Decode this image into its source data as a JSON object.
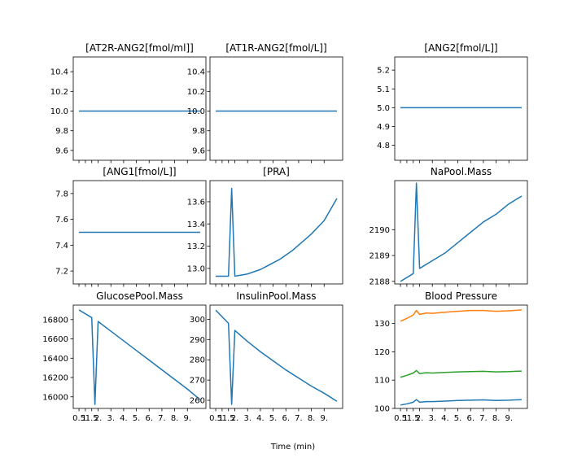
{
  "figure": {
    "xlabel": "Time (min)"
  },
  "colors": {
    "c0": "#1f77b4",
    "c1": "#ff7f0e",
    "c2": "#2ca02c"
  },
  "x_ticks": [
    0.5,
    1,
    1.5,
    2,
    3,
    4,
    5,
    6,
    7,
    8,
    9
  ],
  "x_tick_labels": [
    "0.5",
    "1.",
    "1.5",
    "2.",
    "3.",
    "4.",
    "5.",
    "6.",
    "7.",
    "8.",
    "9."
  ],
  "chart_data": [
    {
      "type": "line",
      "title": "[AT2R-ANG2[fmol/ml]]",
      "xlim": [
        0.05,
        10.45
      ],
      "ylim": [
        9.5,
        10.55
      ],
      "yticks": [
        9.6,
        9.8,
        10.0,
        10.2,
        10.4
      ],
      "ytick_labels": [
        "9.6",
        "9.8",
        "10.0",
        "10.2",
        "10.4"
      ],
      "series": [
        {
          "x": [
            0.5,
            10
          ],
          "y": [
            10.0,
            10.0
          ]
        }
      ]
    },
    {
      "type": "line",
      "title": "[AT1R-ANG2[fmol/L]]",
      "xlim": [
        0.05,
        10.45
      ],
      "ylim": [
        9.5,
        10.55
      ],
      "yticks": [
        9.6,
        9.8,
        10.0,
        10.2,
        10.4
      ],
      "ytick_labels": [
        "9.6",
        "9.8",
        "10.0",
        "10.2",
        "10.4"
      ],
      "series": [
        {
          "x": [
            0.5,
            10
          ],
          "y": [
            10.0,
            10.0
          ]
        }
      ]
    },
    {
      "type": "line",
      "title": "[ANG2[fmol/L]]",
      "xlim": [
        0.05,
        10.45
      ],
      "ylim": [
        4.72,
        5.27
      ],
      "yticks": [
        4.8,
        4.9,
        5.0,
        5.1,
        5.2
      ],
      "ytick_labels": [
        "4.8",
        "4.9",
        "5.0",
        "5.1",
        "5.2"
      ],
      "series": [
        {
          "x": [
            0.5,
            10
          ],
          "y": [
            5.0,
            5.0
          ]
        }
      ]
    },
    {
      "type": "line",
      "title": "[ANG1[fmol/L]]",
      "xlim": [
        0.05,
        10.45
      ],
      "ylim": [
        7.1,
        7.9
      ],
      "yticks": [
        7.2,
        7.4,
        7.6,
        7.8
      ],
      "ytick_labels": [
        "7.2",
        "7.4",
        "7.6",
        "7.8"
      ],
      "series": [
        {
          "x": [
            0.5,
            10
          ],
          "y": [
            7.5,
            7.5
          ]
        }
      ]
    },
    {
      "type": "line",
      "title": "[PRA]",
      "xlim": [
        0.05,
        10.45
      ],
      "ylim": [
        12.86,
        13.79
      ],
      "yticks": [
        13.0,
        13.2,
        13.4,
        13.6
      ],
      "ytick_labels": [
        "13.0",
        "13.2",
        "13.4",
        "13.6"
      ],
      "series": [
        {
          "x": [
            0.5,
            1.5,
            1.75,
            2,
            2.5,
            3,
            3.5,
            4,
            4.5,
            5,
            5.5,
            6,
            6.5,
            7,
            7.5,
            8,
            8.5,
            9,
            9.5,
            10
          ],
          "y": [
            12.93,
            12.93,
            13.72,
            12.93,
            12.94,
            12.95,
            12.97,
            12.99,
            13.02,
            13.05,
            13.08,
            13.12,
            13.16,
            13.21,
            13.26,
            13.31,
            13.37,
            13.43,
            13.53,
            13.63
          ]
        }
      ]
    },
    {
      "type": "line",
      "title": "NaPool.Mass",
      "xlim": [
        0.05,
        10.45
      ],
      "ylim": [
        2187.9,
        2191.9
      ],
      "yticks": [
        2188,
        2189,
        2190
      ],
      "ytick_labels": [
        "2188",
        "2189",
        "2190"
      ],
      "series": [
        {
          "x": [
            0.5,
            1.5,
            1.75,
            2,
            3,
            4,
            5,
            6,
            7,
            8,
            9,
            10
          ],
          "y": [
            2188.0,
            2188.3,
            2191.8,
            2188.5,
            2188.8,
            2189.1,
            2189.5,
            2189.9,
            2190.3,
            2190.6,
            2191.0,
            2191.3
          ]
        }
      ]
    },
    {
      "type": "line",
      "title": "GlucosePool.Mass",
      "xlim": [
        0.05,
        10.45
      ],
      "ylim": [
        15880,
        16950
      ],
      "yticks": [
        16000,
        16200,
        16400,
        16600,
        16800
      ],
      "ytick_labels": [
        "16000",
        "16200",
        "16400",
        "16600",
        "16800"
      ],
      "series": [
        {
          "x": [
            0.5,
            1.5,
            1.75,
            2,
            3,
            4,
            5,
            6,
            7,
            8,
            9,
            10
          ],
          "y": [
            16900,
            16820,
            15920,
            16780,
            16680,
            16580,
            16480,
            16380,
            16280,
            16180,
            16080,
            15970
          ]
        }
      ]
    },
    {
      "type": "line",
      "title": "InsulinPool.Mass",
      "xlim": [
        0.05,
        10.45
      ],
      "ylim": [
        256,
        307
      ],
      "yticks": [
        260,
        270,
        280,
        290,
        300
      ],
      "ytick_labels": [
        "260",
        "270",
        "280",
        "290",
        "300"
      ],
      "series": [
        {
          "x": [
            0.5,
            1.5,
            1.75,
            2,
            3,
            4,
            5,
            6,
            7,
            8,
            9,
            10
          ],
          "y": [
            304.5,
            298,
            258,
            294.5,
            289,
            284,
            279.5,
            275,
            271,
            267,
            263.5,
            259.5
          ]
        }
      ]
    },
    {
      "type": "line",
      "title": "Blood Pressure",
      "xlim": [
        0.05,
        10.45
      ],
      "ylim": [
        100,
        136.5
      ],
      "yticks": [
        100,
        110,
        120,
        130
      ],
      "ytick_labels": [
        "100",
        "110",
        "120",
        "130"
      ],
      "series": [
        {
          "x": [
            0.5,
            1,
            1.5,
            1.75,
            2,
            2.5,
            3,
            4,
            5,
            6,
            7,
            8,
            9,
            10
          ],
          "y": [
            101.2,
            101.6,
            102.2,
            103.1,
            102.2,
            102.4,
            102.4,
            102.6,
            102.8,
            102.9,
            103.0,
            102.8,
            102.9,
            103.1
          ]
        },
        {
          "x": [
            0.5,
            1,
            1.5,
            1.75,
            2,
            2.5,
            3,
            4,
            5,
            6,
            7,
            8,
            9,
            10
          ],
          "y": [
            111.0,
            111.7,
            112.5,
            113.4,
            112.3,
            112.6,
            112.5,
            112.7,
            112.9,
            113.0,
            113.1,
            112.9,
            113.0,
            113.2
          ]
        },
        {
          "x": [
            0.5,
            1,
            1.5,
            1.75,
            2,
            2.5,
            3,
            4,
            5,
            6,
            7,
            8,
            9,
            10
          ],
          "y": [
            130.8,
            131.8,
            133.0,
            134.6,
            133.2,
            133.7,
            133.6,
            134.0,
            134.3,
            134.6,
            134.6,
            134.3,
            134.5,
            134.8
          ]
        }
      ]
    }
  ]
}
